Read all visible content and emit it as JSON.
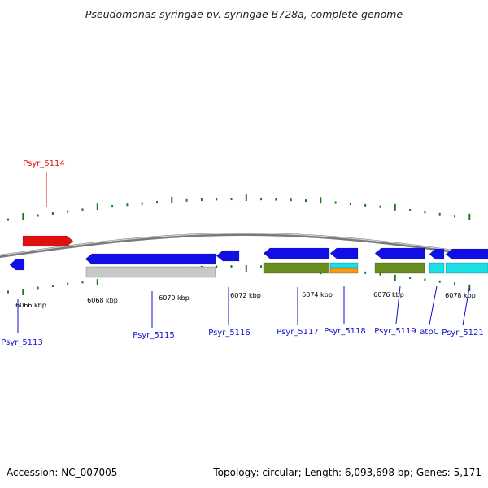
{
  "header": {
    "title": "Pseudomonas syringae pv. syringae B728a, complete genome"
  },
  "footer": {
    "accession": "Accession: NC_007005",
    "summary": "Topology: circular; Length: 6,093,698 bp; Genes: 5,171"
  },
  "colors": {
    "backbone": "#7a7a7a",
    "tick": "#1c7a1c",
    "forward_gene": "#e01010",
    "reverse_gene": "#1010e6",
    "pseudo_gene": "#c8c8c8",
    "feature_olive": "#6b8e23",
    "feature_cyan": "#19e0e6",
    "feature_orange": "#f59a1a",
    "label_forward": "#e01010",
    "label_reverse": "#1010c8"
  },
  "map": {
    "scale_labels": [
      "6066 kbp",
      "6068 kbp",
      "6070 kbp",
      "6072 kbp",
      "6074 kbp",
      "6076 kbp",
      "6078 kbp"
    ],
    "genes": [
      {
        "name": "Psyr_5113",
        "strand": "reverse"
      },
      {
        "name": "Psyr_5114",
        "strand": "forward"
      },
      {
        "name": "Psyr_5115",
        "strand": "reverse"
      },
      {
        "name": "Psyr_5116",
        "strand": "reverse"
      },
      {
        "name": "Psyr_5117",
        "strand": "reverse"
      },
      {
        "name": "Psyr_5118",
        "strand": "reverse"
      },
      {
        "name": "Psyr_5119",
        "strand": "reverse"
      },
      {
        "name": "atpC",
        "strand": "reverse"
      },
      {
        "name": "Psyr_5121",
        "strand": "reverse"
      }
    ]
  }
}
